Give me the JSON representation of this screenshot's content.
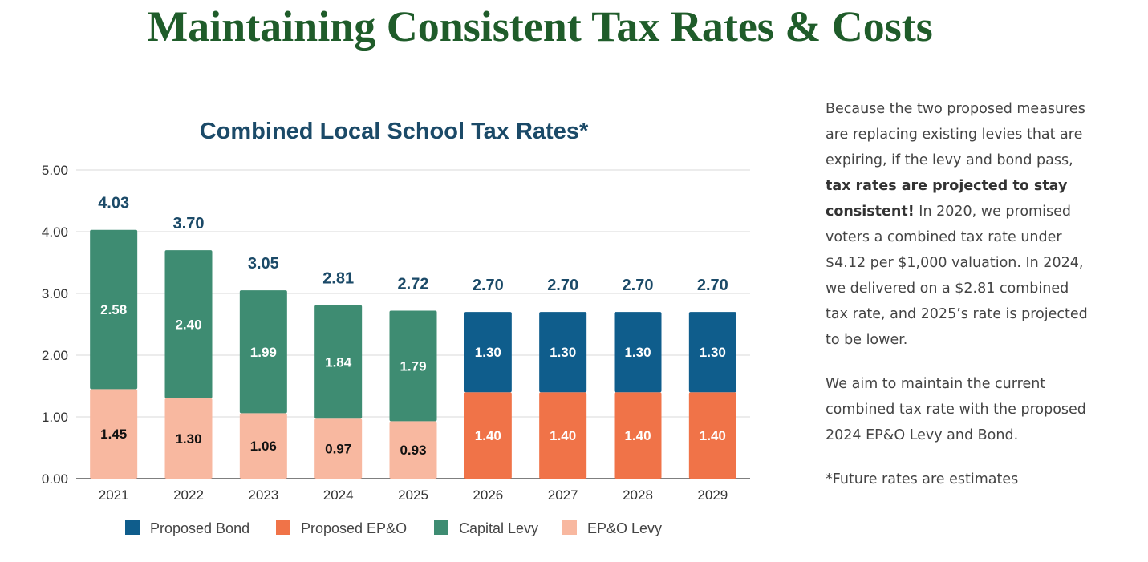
{
  "slide": {
    "title": "Maintaining Consistent Tax Rates & Costs",
    "paragraph1": {
      "intro": "Because the two proposed measures are replacing existing levies that are expiring, if the levy and bond pass, ",
      "bold": "tax rates are projected to stay consistent!",
      "rest": " In 2020, we promised voters a combined tax rate under $4.12 per $1,000 valuation.  In 2024, we delivered on a $2.81 combined tax rate, and 2025’s rate is projected to be lower."
    },
    "paragraph2": "We aim to maintain the current combined tax rate with the proposed 2024 EP&O Levy and Bond.",
    "footnote": "*Future rates are estimates"
  },
  "chart_data": {
    "type": "bar",
    "stacked": true,
    "title": "Combined Local School Tax Rates*",
    "categories": [
      "2021",
      "2022",
      "2023",
      "2024",
      "2025",
      "2026",
      "2027",
      "2028",
      "2029"
    ],
    "ylim": [
      0,
      5
    ],
    "yticks": [
      "0.00",
      "1.00",
      "2.00",
      "3.00",
      "4.00",
      "5.00"
    ],
    "grid": true,
    "legend_position": "bottom",
    "series": [
      {
        "name": "EP&O Levy",
        "color": "#f8b8a0",
        "label_color": "#111111",
        "values": [
          1.45,
          1.3,
          1.06,
          0.97,
          0.93,
          null,
          null,
          null,
          null
        ],
        "labels": [
          "1.45",
          "1.30",
          "1.06",
          "0.97",
          "0.93",
          null,
          null,
          null,
          null
        ]
      },
      {
        "name": "Proposed EP&O",
        "color": "#f07348",
        "label_color": "#ffffff",
        "values": [
          null,
          null,
          null,
          null,
          null,
          1.4,
          1.4,
          1.4,
          1.4
        ],
        "labels": [
          null,
          null,
          null,
          null,
          null,
          "1.40",
          "1.40",
          "1.40",
          "1.40"
        ]
      },
      {
        "name": "Capital Levy",
        "color": "#3e8c72",
        "label_color": "#ffffff",
        "values": [
          2.58,
          2.4,
          1.99,
          1.84,
          1.79,
          null,
          null,
          null,
          null
        ],
        "labels": [
          "2.58",
          "2.40",
          "1.99",
          "1.84",
          "1.79",
          null,
          null,
          null,
          null
        ]
      },
      {
        "name": "Proposed Bond",
        "color": "#0f5d8c",
        "label_color": "#ffffff",
        "values": [
          null,
          null,
          null,
          null,
          null,
          1.3,
          1.3,
          1.3,
          1.3
        ],
        "labels": [
          null,
          null,
          null,
          null,
          null,
          "1.30",
          "1.30",
          "1.30",
          "1.30"
        ]
      }
    ],
    "totals": [
      "4.03",
      "3.70",
      "3.05",
      "2.81",
      "2.72",
      "2.70",
      "2.70",
      "2.70",
      "2.70"
    ],
    "legend_order": [
      "Proposed Bond",
      "Proposed EP&O",
      "Capital Levy",
      "EP&O Levy"
    ],
    "colors": {
      "title": "#1b4a68",
      "totals": "#1b4a68",
      "grid": "#d9d9d9",
      "axis": "#555555",
      "ticks": "#333333"
    }
  }
}
